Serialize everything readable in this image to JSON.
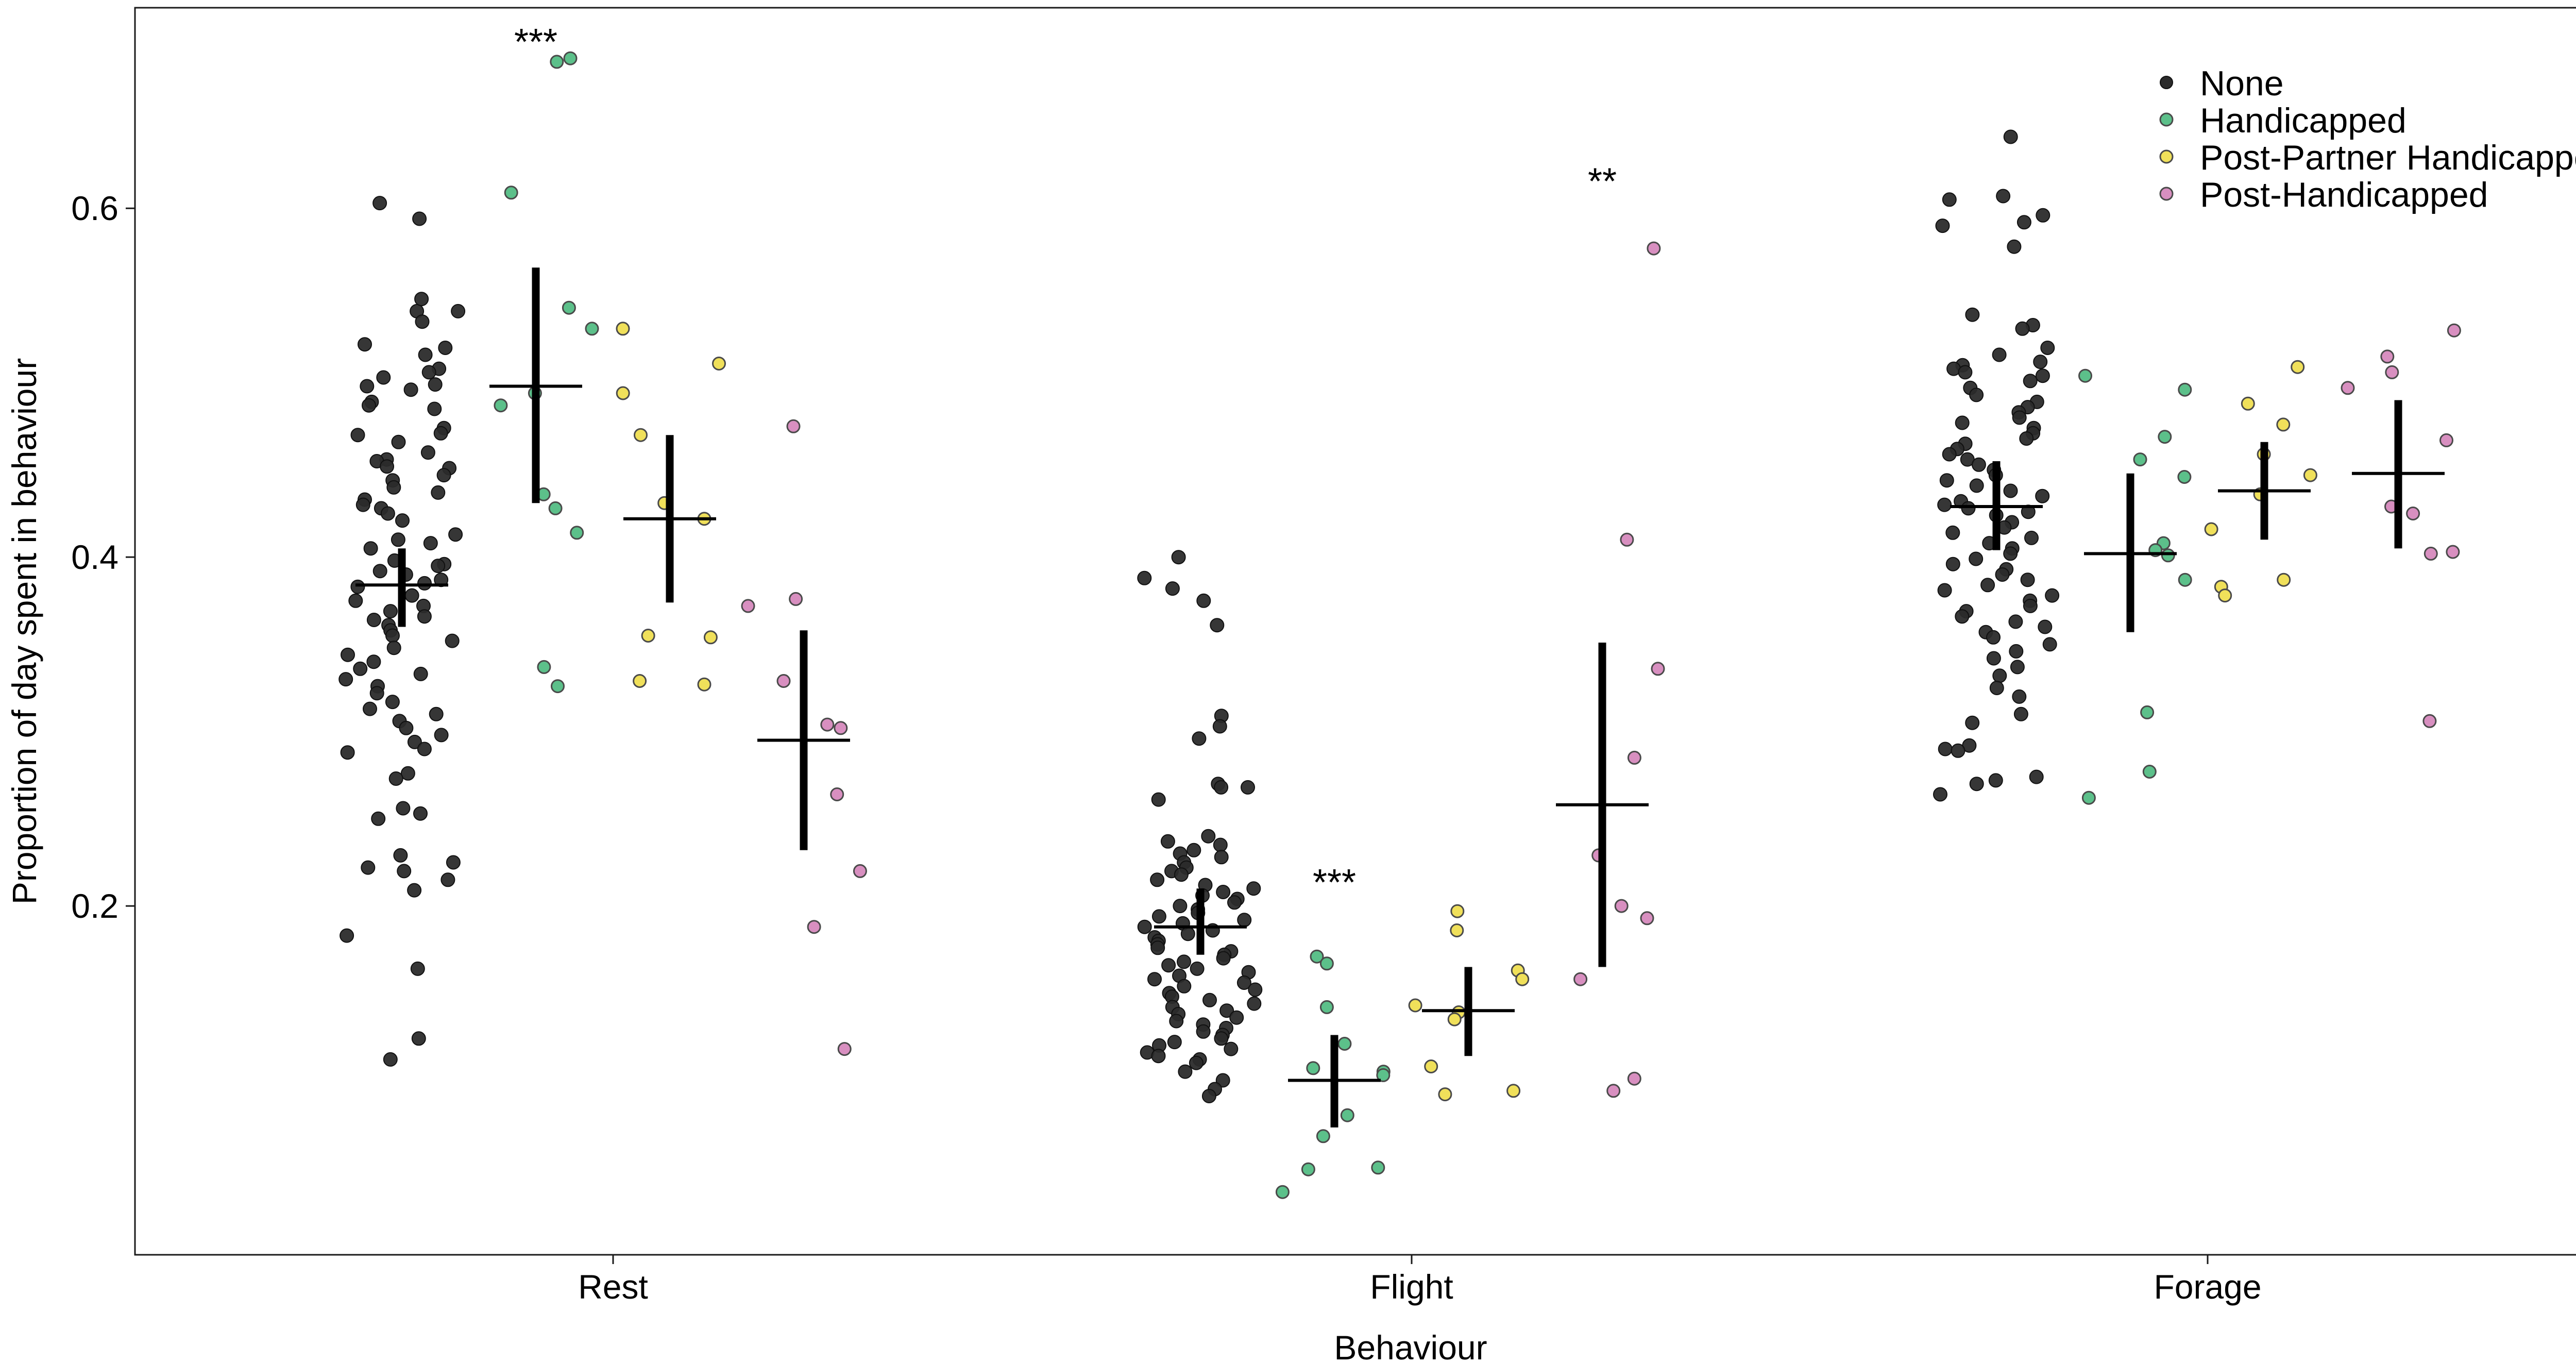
{
  "chart_data": {
    "type": "scatter",
    "title": "",
    "xlabel": "Behaviour",
    "ylabel": "Proportion of day spent in behaviour",
    "categories": [
      "Rest",
      "Flight",
      "Forage"
    ],
    "ylim": [
      0.0,
      0.715
    ],
    "yticks": [
      0.2,
      0.4,
      0.6
    ],
    "ytick_labels": [
      "0.2",
      "0.4",
      "0.6"
    ],
    "grid": false,
    "legend_position": "top-right",
    "series": [
      {
        "name": "None",
        "color": "#2b2b2b",
        "marker": "filled-circle"
      },
      {
        "name": "Handicapped",
        "color": "#5cc08a",
        "marker": "circle-outlined"
      },
      {
        "name": "Post-Partner Handicapped",
        "color": "#f0e05a",
        "marker": "circle-outlined"
      },
      {
        "name": "Post-Handicapped",
        "color": "#d88fc0",
        "marker": "circle-outlined"
      }
    ],
    "groups": [
      {
        "category": "Rest",
        "series": "None",
        "mean": 0.384,
        "ci_low": 0.36,
        "ci_high": 0.405,
        "points": [
          0.594,
          0.603,
          0.541,
          0.541,
          0.535,
          0.548,
          0.522,
          0.52,
          0.516,
          0.508,
          0.506,
          0.503,
          0.499,
          0.498,
          0.496,
          0.489,
          0.487,
          0.485,
          0.474,
          0.471,
          0.47,
          0.466,
          0.46,
          0.456,
          0.455,
          0.452,
          0.451,
          0.447,
          0.444,
          0.44,
          0.437,
          0.433,
          0.43,
          0.428,
          0.425,
          0.421,
          0.413,
          0.41,
          0.408,
          0.405,
          0.398,
          0.396,
          0.395,
          0.392,
          0.39,
          0.387,
          0.385,
          0.383,
          0.378,
          0.375,
          0.372,
          0.369,
          0.366,
          0.364,
          0.361,
          0.358,
          0.355,
          0.352,
          0.348,
          0.344,
          0.34,
          0.336,
          0.333,
          0.33,
          0.326,
          0.322,
          0.317,
          0.313,
          0.31,
          0.306,
          0.302,
          0.298,
          0.294,
          0.29,
          0.288,
          0.276,
          0.273,
          0.256,
          0.253,
          0.25,
          0.229,
          0.225,
          0.222,
          0.22,
          0.215,
          0.209,
          0.183,
          0.164,
          0.124,
          0.112
        ]
      },
      {
        "category": "Rest",
        "series": "Handicapped",
        "mean": 0.498,
        "ci_low": 0.431,
        "ci_high": 0.566,
        "points": [
          0.686,
          0.684,
          0.609,
          0.543,
          0.531,
          0.494,
          0.487,
          0.436,
          0.428,
          0.414,
          0.337,
          0.326
        ]
      },
      {
        "category": "Rest",
        "series": "Post-Partner Handicapped",
        "mean": 0.422,
        "ci_low": 0.374,
        "ci_high": 0.47,
        "points": [
          0.531,
          0.511,
          0.494,
          0.47,
          0.431,
          0.422,
          0.355,
          0.354,
          0.329,
          0.327
        ]
      },
      {
        "category": "Rest",
        "series": "Post-Handicapped",
        "mean": 0.295,
        "ci_low": 0.232,
        "ci_high": 0.358,
        "points": [
          0.475,
          0.376,
          0.372,
          0.329,
          0.304,
          0.302,
          0.264,
          0.22,
          0.188,
          0.118
        ]
      },
      {
        "category": "Flight",
        "series": "None",
        "mean": 0.188,
        "ci_low": 0.172,
        "ci_high": 0.21,
        "points": [
          0.4,
          0.388,
          0.382,
          0.375,
          0.361,
          0.309,
          0.303,
          0.296,
          0.27,
          0.268,
          0.268,
          0.261,
          0.24,
          0.237,
          0.235,
          0.232,
          0.23,
          0.228,
          0.225,
          0.222,
          0.22,
          0.218,
          0.215,
          0.212,
          0.21,
          0.208,
          0.206,
          0.204,
          0.202,
          0.2,
          0.198,
          0.196,
          0.194,
          0.192,
          0.19,
          0.188,
          0.186,
          0.184,
          0.182,
          0.18,
          0.178,
          0.176,
          0.174,
          0.172,
          0.17,
          0.168,
          0.166,
          0.164,
          0.162,
          0.16,
          0.158,
          0.156,
          0.154,
          0.152,
          0.15,
          0.148,
          0.146,
          0.144,
          0.142,
          0.14,
          0.138,
          0.136,
          0.134,
          0.132,
          0.13,
          0.128,
          0.126,
          0.124,
          0.122,
          0.12,
          0.118,
          0.116,
          0.114,
          0.112,
          0.11,
          0.105,
          0.1,
          0.095,
          0.091
        ]
      },
      {
        "category": "Flight",
        "series": "Handicapped",
        "mean": 0.1,
        "ci_low": 0.073,
        "ci_high": 0.126,
        "points": [
          0.171,
          0.167,
          0.142,
          0.121,
          0.107,
          0.105,
          0.103,
          0.08,
          0.068,
          0.05,
          0.049,
          0.036
        ]
      },
      {
        "category": "Flight",
        "series": "Post-Partner Handicapped",
        "mean": 0.14,
        "ci_low": 0.114,
        "ci_high": 0.165,
        "points": [
          0.197,
          0.186,
          0.163,
          0.158,
          0.143,
          0.139,
          0.135,
          0.108,
          0.094,
          0.092
        ]
      },
      {
        "category": "Flight",
        "series": "Post-Handicapped",
        "mean": 0.258,
        "ci_low": 0.165,
        "ci_high": 0.351,
        "points": [
          0.577,
          0.41,
          0.336,
          0.285,
          0.229,
          0.2,
          0.193,
          0.158,
          0.101,
          0.094
        ]
      },
      {
        "category": "Forage",
        "series": "None",
        "mean": 0.429,
        "ci_low": 0.404,
        "ci_high": 0.455,
        "points": [
          0.641,
          0.607,
          0.605,
          0.596,
          0.592,
          0.59,
          0.578,
          0.539,
          0.533,
          0.531,
          0.52,
          0.516,
          0.512,
          0.51,
          0.508,
          0.506,
          0.504,
          0.501,
          0.497,
          0.493,
          0.489,
          0.486,
          0.483,
          0.48,
          0.477,
          0.474,
          0.471,
          0.468,
          0.465,
          0.462,
          0.459,
          0.456,
          0.453,
          0.45,
          0.447,
          0.444,
          0.441,
          0.438,
          0.435,
          0.432,
          0.43,
          0.428,
          0.426,
          0.424,
          0.42,
          0.417,
          0.414,
          0.411,
          0.408,
          0.405,
          0.402,
          0.399,
          0.396,
          0.393,
          0.39,
          0.387,
          0.384,
          0.381,
          0.378,
          0.375,
          0.372,
          0.369,
          0.366,
          0.363,
          0.36,
          0.357,
          0.354,
          0.35,
          0.346,
          0.342,
          0.337,
          0.332,
          0.325,
          0.32,
          0.31,
          0.305,
          0.292,
          0.29,
          0.289,
          0.274,
          0.272,
          0.27,
          0.264
        ]
      },
      {
        "category": "Forage",
        "series": "Handicapped",
        "mean": 0.402,
        "ci_low": 0.357,
        "ci_high": 0.448,
        "points": [
          0.504,
          0.496,
          0.469,
          0.456,
          0.446,
          0.408,
          0.404,
          0.401,
          0.387,
          0.311,
          0.277,
          0.262
        ]
      },
      {
        "category": "Forage",
        "series": "Post-Partner Handicapped",
        "mean": 0.438,
        "ci_low": 0.41,
        "ci_high": 0.466,
        "points": [
          0.509,
          0.488,
          0.476,
          0.459,
          0.447,
          0.436,
          0.416,
          0.387,
          0.383,
          0.378
        ]
      },
      {
        "category": "Forage",
        "series": "Post-Handicapped",
        "mean": 0.448,
        "ci_low": 0.405,
        "ci_high": 0.49,
        "points": [
          0.53,
          0.515,
          0.506,
          0.497,
          0.467,
          0.429,
          0.425,
          0.403,
          0.402,
          0.306
        ]
      }
    ],
    "annotations": [
      {
        "text": "***",
        "category": "Rest",
        "series": "Handicapped",
        "y": 0.7
      },
      {
        "text": "***",
        "category": "Flight",
        "series": "Handicapped",
        "y": 0.218
      },
      {
        "text": "**",
        "category": "Flight",
        "series": "Post-Handicapped",
        "y": 0.62
      }
    ]
  }
}
